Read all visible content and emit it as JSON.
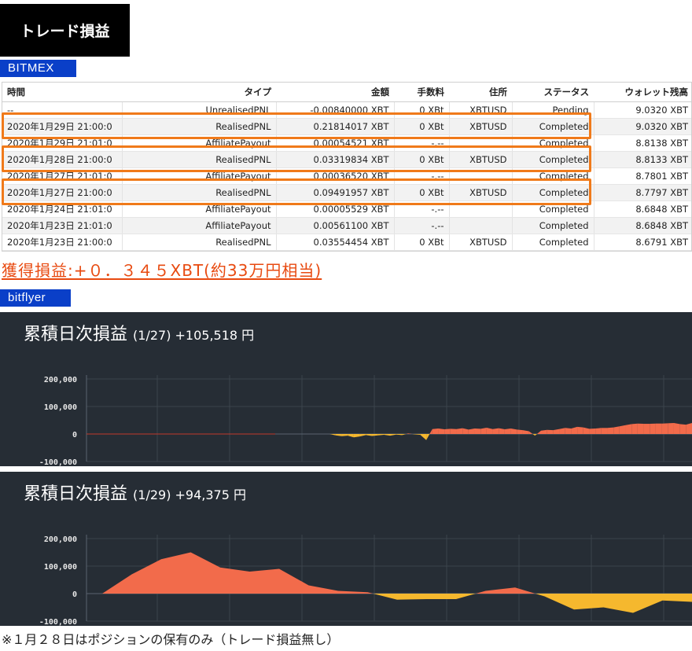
{
  "header": {
    "title": "トレード損益"
  },
  "bitmex": {
    "tag": "BITMEX",
    "columns": [
      "時間",
      "タイプ",
      "金額",
      "手数料",
      "住所",
      "ステータス",
      "ウォレット残高"
    ],
    "rows": [
      [
        "--",
        "UnrealisedPNL",
        "-0.00840000 XBT",
        "0 XBt",
        "XBTUSD",
        "Pending",
        "9.0320 XBT"
      ],
      [
        "2020年1月29日 21:00:0",
        "RealisedPNL",
        "0.21814017 XBT",
        "0 XBt",
        "XBTUSD",
        "Completed",
        "9.0320 XBT"
      ],
      [
        "2020年1月29日 21:01:0",
        "AffiliatePayout",
        "0.00054521 XBT",
        "-.--",
        "",
        "Completed",
        "8.8138 XBT"
      ],
      [
        "2020年1月28日 21:00:0",
        "RealisedPNL",
        "0.03319834 XBT",
        "0 XBt",
        "XBTUSD",
        "Completed",
        "8.8133 XBT"
      ],
      [
        "2020年1月27日 21:01:0",
        "AffiliatePayout",
        "0.00036520 XBT",
        "-.--",
        "",
        "Completed",
        "8.7801 XBT"
      ],
      [
        "2020年1月27日 21:00:0",
        "RealisedPNL",
        "0.09491957 XBT",
        "0 XBt",
        "XBTUSD",
        "Completed",
        "8.7797 XBT"
      ],
      [
        "2020年1月24日 21:01:0",
        "AffiliatePayout",
        "0.00005529 XBT",
        "-.--",
        "",
        "Completed",
        "8.6848 XBT"
      ],
      [
        "2020年1月23日 21:01:0",
        "AffiliatePayout",
        "0.00561100 XBT",
        "-.--",
        "",
        "Completed",
        "8.6848 XBT"
      ],
      [
        "2020年1月23日 21:00:0",
        "RealisedPNL",
        "0.03554454 XBT",
        "0 XBt",
        "XBTUSD",
        "Completed",
        "8.6791 XBT"
      ]
    ],
    "gain_summary": "獲得損益:+０．３４５XBT(約33万円相当)"
  },
  "bitflyer": {
    "tag": "bitflyer",
    "chart1": {
      "title_main": "累積日次損益",
      "title_sub": "(1/27) +105,518 円"
    },
    "chart2": {
      "title_main": "累積日次損益",
      "title_sub": "(1/29) +94,375 円"
    }
  },
  "footnote": "※１月２８日はポジションの保有のみ（トレード損益無し）",
  "colors": {
    "accent_orange": "#f07a1a",
    "gain_text": "#e84a10",
    "tag_blue": "#0a3fc8",
    "chart_bg": "#262d35",
    "positive_fill": "#f26b4b",
    "negative_fill": "#f5b82e"
  },
  "chart_data": [
    {
      "type": "area",
      "yticks": [
        "200,000",
        "100,000",
        "0",
        "-100,000"
      ],
      "ylim": [
        -100000,
        200000
      ],
      "grid": true,
      "series": [
        {
          "values": [
            0,
            0,
            0,
            0,
            0,
            0,
            0,
            0,
            0,
            0,
            0,
            0,
            0,
            0,
            0,
            0,
            0,
            0,
            0,
            0,
            0,
            0,
            0,
            0,
            0,
            0,
            0,
            0,
            0,
            0,
            0,
            0,
            0,
            0,
            0,
            0,
            0,
            0,
            0,
            0,
            0,
            -5000,
            -8000,
            -6000,
            -12000,
            -9000,
            -4000,
            -7000,
            -5000,
            -3000,
            -6000,
            -2000,
            -4000,
            2000,
            -1000,
            -3000,
            -22000,
            18000,
            20000,
            17000,
            19000,
            18000,
            21000,
            16000,
            20000,
            19000,
            23000,
            18000,
            21000,
            17000,
            20000,
            16000,
            14000,
            10000,
            -6000,
            12000,
            15000,
            14000,
            18000,
            22000,
            20000,
            26000,
            24000,
            19000,
            20000,
            22000,
            22000,
            24000,
            28000,
            32000,
            36000,
            38000,
            37000,
            37000,
            38000,
            38000,
            39000,
            40000,
            36000,
            34000,
            40000
          ]
        }
      ]
    },
    {
      "type": "area",
      "yticks": [
        "200,000",
        "100,000",
        "0",
        "-100,000"
      ],
      "ylim": [
        -100000,
        200000
      ],
      "grid": true,
      "series": [
        {
          "values": [
            0,
            70000,
            125000,
            150000,
            95000,
            80000,
            90000,
            30000,
            10000,
            5000,
            -22000,
            -20000,
            -20000,
            10000,
            22000,
            -10000,
            -58000,
            -50000,
            -70000,
            -25000,
            -30000
          ]
        }
      ]
    }
  ]
}
